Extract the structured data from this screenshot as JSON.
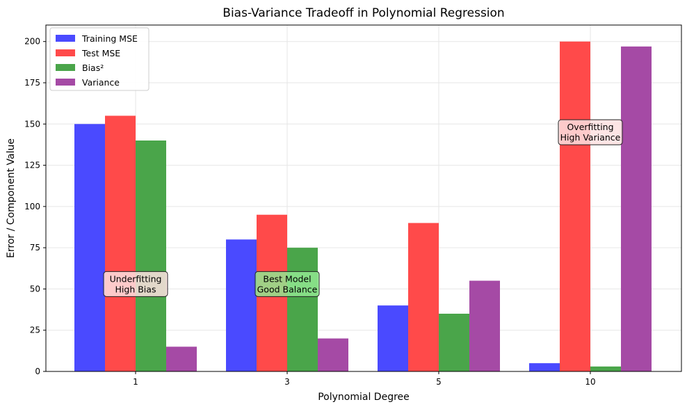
{
  "chart_data": {
    "type": "bar",
    "title": "Bias-Variance Tradeoff in Polynomial Regression",
    "xlabel": "Polynomial Degree",
    "ylabel": "Error / Component Value",
    "categories": [
      "1",
      "3",
      "5",
      "10"
    ],
    "ylim": [
      0,
      210
    ],
    "yticks": [
      0,
      25,
      50,
      75,
      100,
      125,
      150,
      175,
      200
    ],
    "grid": true,
    "legend_position": "top-left",
    "series": [
      {
        "name": "Training MSE",
        "color": "#4a4aff",
        "values": [
          150,
          80,
          40,
          5
        ]
      },
      {
        "name": "Test MSE",
        "color": "#ff4a4a",
        "values": [
          155,
          95,
          90,
          200
        ]
      },
      {
        "name": "Bias²",
        "color": "#4aa54a",
        "values": [
          140,
          75,
          35,
          3
        ]
      },
      {
        "name": "Variance",
        "color": "#a54aa5",
        "values": [
          15,
          20,
          55,
          197
        ]
      }
    ],
    "annotations": [
      {
        "lines": [
          "Underfitting",
          "High Bias"
        ],
        "category_index": 0,
        "y": 53,
        "bg": "#fde0e0"
      },
      {
        "lines": [
          "Best Model",
          "Good Balance"
        ],
        "category_index": 1,
        "y": 53,
        "bg": "#90e890"
      },
      {
        "lines": [
          "Overfitting",
          "High Variance"
        ],
        "category_index": 3,
        "y": 145,
        "bg": "#fde0e0"
      }
    ]
  }
}
